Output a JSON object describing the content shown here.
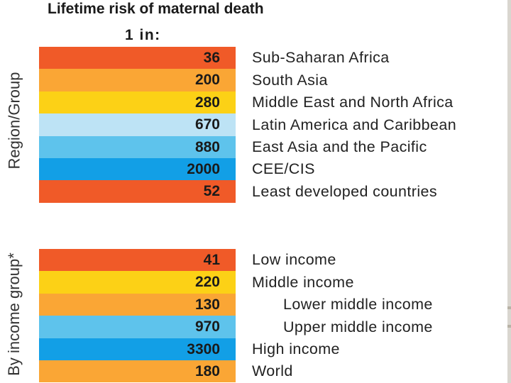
{
  "chart_data": {
    "type": "table",
    "title": "Lifetime risk of maternal death",
    "subtitle": "1 in:",
    "groups": [
      {
        "label": "Region/Group",
        "rows": [
          {
            "name": "Sub-Saharan Africa",
            "value": "36",
            "color": "#f05a28",
            "indent": false
          },
          {
            "name": "South Asia",
            "value": "200",
            "color": "#faa635",
            "indent": false
          },
          {
            "name": "Middle East and North Africa",
            "value": "280",
            "color": "#fcd116",
            "indent": false
          },
          {
            "name": "Latin America and Caribbean",
            "value": "670",
            "color": "#bde3f5",
            "indent": false
          },
          {
            "name": "East Asia and the Pacific",
            "value": "880",
            "color": "#5ec3ec",
            "indent": false
          },
          {
            "name": "CEE/CIS",
            "value": "2000",
            "color": "#129fe6",
            "indent": false
          },
          {
            "name": "Least developed countries",
            "value": "52",
            "color": "#f05a28",
            "indent": false
          }
        ]
      },
      {
        "label": "By income group*",
        "rows": [
          {
            "name": "Low income",
            "value": "41",
            "color": "#f05a28",
            "indent": false
          },
          {
            "name": "Middle income",
            "value": "220",
            "color": "#fcd116",
            "indent": false
          },
          {
            "name": "Lower middle income",
            "value": "130",
            "color": "#faa635",
            "indent": true
          },
          {
            "name": "Upper middle income",
            "value": "970",
            "color": "#5ec3ec",
            "indent": true
          },
          {
            "name": "High income",
            "value": "3300",
            "color": "#129fe6",
            "indent": false
          },
          {
            "name": "World",
            "value": "180",
            "color": "#faa635",
            "indent": false
          }
        ]
      }
    ]
  }
}
